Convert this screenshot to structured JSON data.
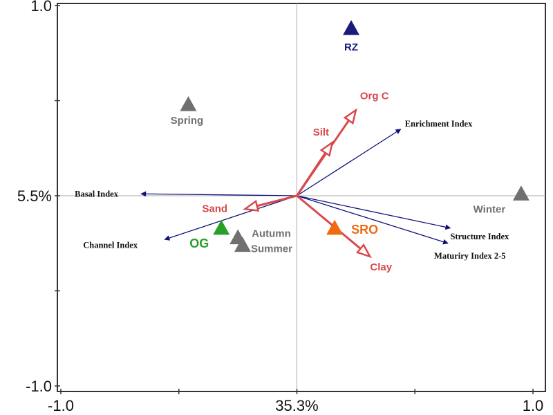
{
  "chart_data": {
    "type": "scatter",
    "title": "",
    "subtype": "ordination biplot",
    "xlabel": "",
    "ylabel": "",
    "xlim": [
      -1.0,
      1.0
    ],
    "ylim": [
      -1.0,
      1.0
    ],
    "x_ticks": [
      {
        "value": -1.0,
        "label": "-1.0"
      },
      {
        "value": -0.5,
        "label": ""
      },
      {
        "value": 0.0,
        "label": "35.3%"
      },
      {
        "value": 0.5,
        "label": ""
      },
      {
        "value": 1.0,
        "label": "1.0"
      }
    ],
    "y_ticks": [
      {
        "value": 1.0,
        "label": "1.0"
      },
      {
        "value": 0.5,
        "label": ""
      },
      {
        "value": 0.0,
        "label": "5.5%"
      },
      {
        "value": -0.5,
        "label": ""
      },
      {
        "value": -1.0,
        "label": "-1.0"
      }
    ],
    "grid": false,
    "zero_lines": true,
    "colors": {
      "season": "#707070",
      "RZ": "#1a1a7a",
      "OG": "#27a02a",
      "SRO": "#ef6a10",
      "env": "#d9484c",
      "index": "#10107a"
    },
    "sample_points": [
      {
        "name": "RZ",
        "x": 0.23,
        "y": 0.88,
        "group": "RZ",
        "label_pos": "below"
      },
      {
        "name": "Spring",
        "x": -0.46,
        "y": 0.48,
        "group": "season",
        "label_pos": "below"
      },
      {
        "name": "Winter",
        "x": 0.95,
        "y": 0.01,
        "group": "season",
        "label_pos": "below-left"
      },
      {
        "name": "SRO",
        "x": 0.16,
        "y": -0.17,
        "group": "SRO",
        "label_pos": "right"
      },
      {
        "name": "OG",
        "x": -0.32,
        "y": -0.17,
        "group": "OG",
        "label_pos": "below-left"
      },
      {
        "name": "Autumn",
        "x": -0.25,
        "y": -0.22,
        "group": "season",
        "label_pos": "right"
      },
      {
        "name": "Summer",
        "x": -0.23,
        "y": -0.26,
        "group": "season",
        "label_pos": "right-below"
      }
    ],
    "env_arrows": [
      {
        "name": "Org C",
        "x": 0.25,
        "y": 0.45,
        "label_dx": 6,
        "label_dy": -16
      },
      {
        "name": "Silt",
        "x": 0.15,
        "y": 0.28,
        "label_dx": -28,
        "label_dy": -10
      },
      {
        "name": "Sand",
        "x": -0.22,
        "y": -0.07,
        "label_dx": -62,
        "label_dy": 4
      },
      {
        "name": "Clay",
        "x": 0.31,
        "y": -0.32,
        "label_dx": 0,
        "label_dy": 20
      }
    ],
    "index_arrows": [
      {
        "name": "Enrichment Index",
        "x": 0.44,
        "y": 0.35,
        "label_dx": 6,
        "label_dy": -4
      },
      {
        "name": "Basal Index",
        "x": -0.66,
        "y": 0.01,
        "label_dx": -96,
        "label_dy": 4
      },
      {
        "name": "Channel Index",
        "x": -0.56,
        "y": -0.23,
        "label_dx": -118,
        "label_dy": 12
      },
      {
        "name": "Structure Index",
        "x": 0.65,
        "y": -0.17,
        "label_dx": 0,
        "label_dy": 16
      },
      {
        "name": "Maturiry Index 2-5",
        "x": 0.64,
        "y": -0.25,
        "label_dx": -20,
        "label_dy": 22
      }
    ]
  }
}
